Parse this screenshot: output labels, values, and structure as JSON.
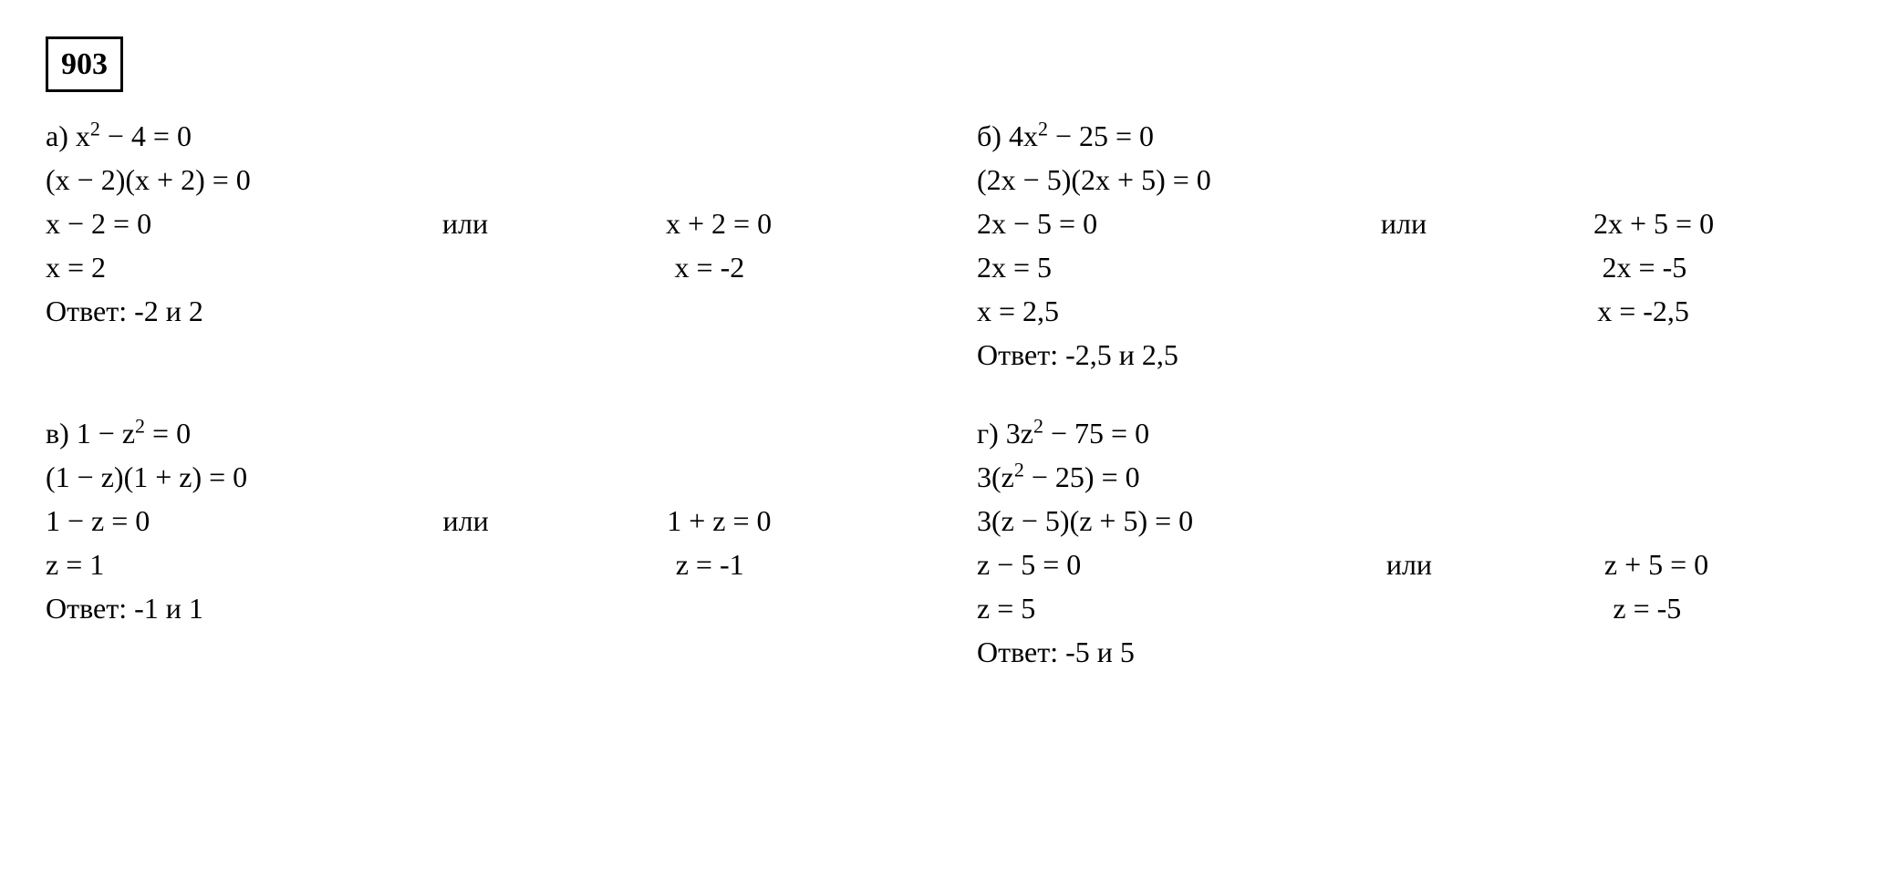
{
  "problem_number": "903",
  "a": {
    "label": "а)",
    "eq1_pre": "x",
    "eq1_post": " − 4 = 0",
    "eq2": "(x − 2)(x + 2) = 0",
    "split_l": "x − 2 = 0",
    "or": "или",
    "split_r": "x + 2 = 0",
    "sol_l": "x = 2",
    "sol_r": "x = -2",
    "answer": "Ответ: -2 и 2"
  },
  "b": {
    "label": "б)",
    "eq1_pre": "4x",
    "eq1_post": " − 25 = 0",
    "eq2": "(2x − 5)(2x + 5) = 0",
    "split_l": "2x − 5 = 0",
    "or": "или",
    "split_r": "2x + 5 = 0",
    "sol1_l": "2x = 5",
    "sol1_r": "2x = -5",
    "sol2_l": "x = 2,5",
    "sol2_r": "x = -2,5",
    "answer": "Ответ: -2,5 и 2,5"
  },
  "c": {
    "label": "в)",
    "eq1_pre": "1 − z",
    "eq1_post": " = 0",
    "eq2": "(1 − z)(1  + z) = 0",
    "split_l": "1 − z = 0",
    "or": "или",
    "split_r": "1 + z = 0",
    "sol_l": "z = 1",
    "sol_r": "z = -1",
    "answer": "Ответ: -1 и 1"
  },
  "d": {
    "label": "г)",
    "eq1_pre": "3z",
    "eq1_post": " − 75 = 0",
    "eq2_pre": "3(z",
    "eq2_post": " − 25) = 0",
    "eq3": "3(z − 5)(z + 5) = 0",
    "split_l": "z − 5 = 0",
    "or": "или",
    "split_r": "z + 5 = 0",
    "sol_l": "z = 5",
    "sol_r": "z = -5",
    "answer": "Ответ: -5 и 5"
  },
  "exp2": "2"
}
